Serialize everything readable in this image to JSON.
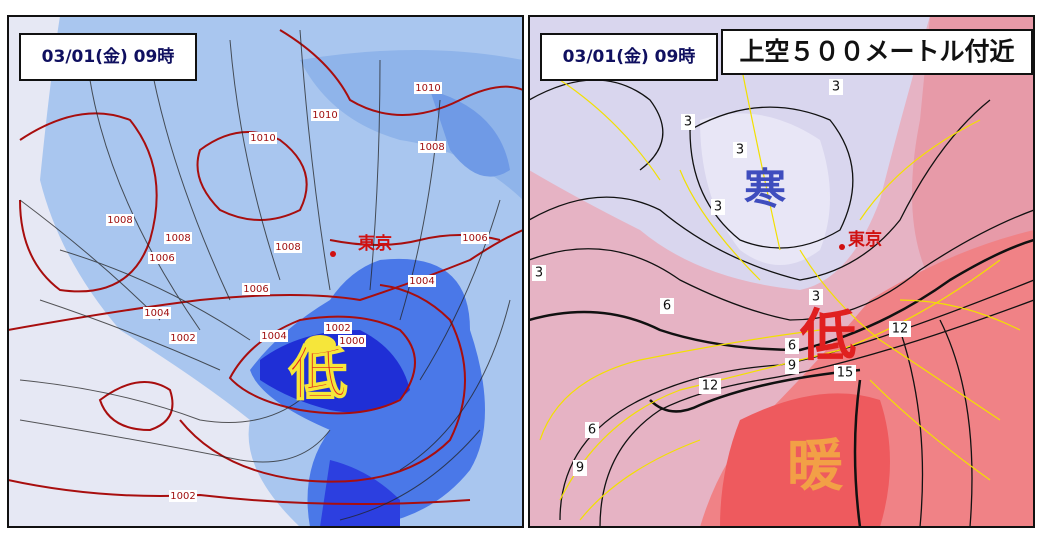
{
  "left_panel": {
    "timestamp": "03/01(金) 09時",
    "city": "東京",
    "low": "低",
    "isobar_labels": [
      "1010",
      "1010",
      "1010",
      "1008",
      "1008",
      "1008",
      "1006",
      "1008",
      "1006",
      "1006",
      "1004",
      "1004",
      "1004",
      "1002",
      "1002",
      "1000",
      "1002"
    ]
  },
  "right_panel": {
    "timestamp": "03/01(金) 09時",
    "level": "上空５００メートル付近",
    "cold": "寒",
    "city": "東京",
    "low": "低",
    "warm": "暖",
    "contour_labels": [
      "3",
      "3",
      "3",
      "3",
      "3",
      "3",
      "6",
      "6",
      "12",
      "9",
      "15",
      "12",
      "6",
      "9"
    ]
  }
}
